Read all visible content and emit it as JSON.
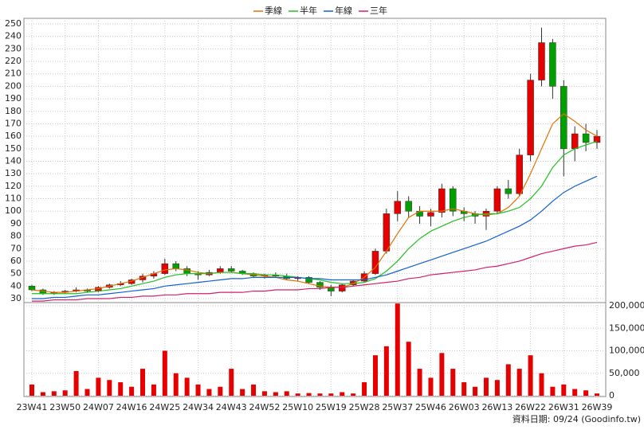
{
  "chart_data": {
    "type": "candlestick",
    "categories": [
      "23W41",
      null,
      null,
      "23W50",
      null,
      null,
      "24W07",
      null,
      null,
      "24W16",
      null,
      null,
      "24W25",
      null,
      null,
      "24W34",
      null,
      null,
      "24W43",
      null,
      null,
      "24W52",
      null,
      null,
      "25W10",
      null,
      null,
      "25W19",
      null,
      null,
      "25W28",
      null,
      null,
      "25W37",
      null,
      null,
      "25W46",
      null,
      null,
      "26W03",
      null,
      null,
      "26W13",
      null,
      null,
      "26W22",
      null,
      null,
      "26W31",
      null,
      null,
      "26W39"
    ],
    "open": [
      40,
      37,
      34,
      35,
      36,
      37,
      36,
      39,
      41,
      42,
      45,
      48,
      50,
      58,
      54,
      50,
      49,
      51,
      54,
      52,
      50,
      48,
      49,
      48,
      46,
      47,
      43,
      39,
      36,
      41,
      44,
      50,
      68,
      98,
      108,
      100,
      96,
      99,
      118,
      100,
      98,
      96,
      100,
      118,
      114,
      145,
      205,
      235,
      200,
      150,
      162,
      155
    ],
    "high": [
      41,
      38,
      36,
      37,
      39,
      38,
      40,
      42,
      44,
      46,
      50,
      52,
      62,
      60,
      56,
      52,
      53,
      56,
      56,
      53,
      51,
      50,
      51,
      50,
      48,
      48,
      44,
      41,
      42,
      45,
      52,
      70,
      102,
      116,
      112,
      104,
      102,
      122,
      120,
      103,
      100,
      102,
      120,
      125,
      150,
      210,
      247,
      238,
      205,
      168,
      170,
      165
    ],
    "low": [
      36,
      33,
      33,
      34,
      35,
      35,
      35,
      38,
      40,
      41,
      43,
      46,
      49,
      52,
      48,
      45,
      48,
      50,
      51,
      49,
      47,
      46,
      47,
      45,
      44,
      42,
      37,
      32,
      35,
      40,
      43,
      49,
      66,
      92,
      95,
      90,
      88,
      95,
      96,
      92,
      90,
      85,
      98,
      110,
      112,
      140,
      200,
      190,
      128,
      140,
      148,
      150
    ],
    "close": [
      37,
      34,
      35,
      36,
      37,
      36,
      39,
      41,
      42,
      45,
      48,
      50,
      58,
      54,
      50,
      49,
      51,
      54,
      52,
      50,
      48,
      49,
      48,
      46,
      47,
      43,
      39,
      36,
      41,
      44,
      50,
      68,
      98,
      108,
      100,
      96,
      99,
      118,
      100,
      98,
      96,
      100,
      118,
      114,
      145,
      205,
      235,
      200,
      150,
      162,
      155,
      160
    ],
    "up_color": "#e60000",
    "down_color": "#00a000",
    "series": [
      {
        "name": "季線",
        "color": "#e07000",
        "values": [
          37,
          36,
          35,
          35,
          36,
          37,
          38,
          40,
          42,
          44,
          47,
          50,
          53,
          54,
          53,
          51,
          50,
          51,
          51,
          50,
          49,
          48,
          47,
          45,
          44,
          42,
          40,
          39,
          39,
          42,
          47,
          55,
          68,
          82,
          95,
          100,
          100,
          100,
          102,
          100,
          98,
          97,
          98,
          103,
          112,
          130,
          150,
          170,
          178,
          172,
          165,
          160
        ]
      },
      {
        "name": "半年",
        "color": "#20c020",
        "values": [
          34,
          34,
          34,
          34,
          34,
          35,
          36,
          37,
          38,
          40,
          42,
          44,
          47,
          49,
          50,
          50,
          50,
          51,
          51,
          50,
          50,
          49,
          49,
          48,
          47,
          46,
          45,
          43,
          42,
          42,
          43,
          46,
          52,
          60,
          70,
          78,
          84,
          88,
          92,
          95,
          97,
          98,
          98,
          100,
          103,
          110,
          120,
          135,
          145,
          150,
          153,
          156
        ]
      },
      {
        "name": "年線",
        "color": "#1060d0",
        "values": [
          30,
          30,
          31,
          31,
          32,
          33,
          33,
          34,
          35,
          36,
          37,
          38,
          40,
          41,
          42,
          43,
          44,
          45,
          46,
          46,
          47,
          47,
          47,
          47,
          47,
          46,
          46,
          45,
          45,
          45,
          45,
          47,
          49,
          52,
          55,
          58,
          61,
          64,
          67,
          70,
          73,
          76,
          80,
          84,
          88,
          93,
          100,
          108,
          115,
          120,
          124,
          128
        ]
      },
      {
        "name": "三年",
        "color": "#d0206a",
        "values": [
          28,
          28,
          29,
          29,
          29,
          30,
          30,
          30,
          31,
          31,
          32,
          32,
          33,
          33,
          34,
          34,
          34,
          35,
          35,
          35,
          36,
          36,
          37,
          37,
          37,
          38,
          38,
          39,
          39,
          40,
          41,
          42,
          43,
          44,
          46,
          47,
          49,
          50,
          51,
          52,
          53,
          55,
          56,
          58,
          60,
          63,
          66,
          68,
          70,
          72,
          73,
          75
        ]
      }
    ],
    "ylim": [
      30,
      250
    ],
    "yticks": [
      30,
      40,
      50,
      60,
      70,
      80,
      90,
      100,
      110,
      120,
      130,
      140,
      150,
      160,
      170,
      180,
      190,
      200,
      210,
      220,
      230,
      240,
      250
    ],
    "grid": true,
    "volume": {
      "color": "#e60000",
      "ylim": [
        0,
        200000
      ],
      "yticks": [
        {
          "value": 0,
          "label": "0"
        },
        {
          "value": 50000,
          "label": "50,000"
        },
        {
          "value": 100000,
          "label": "100,000"
        },
        {
          "value": 150000,
          "label": "150,000"
        },
        {
          "value": 200000,
          "label": "200,000"
        }
      ],
      "values": [
        25000,
        8000,
        10000,
        12000,
        55000,
        15000,
        40000,
        35000,
        30000,
        20000,
        60000,
        25000,
        100000,
        50000,
        40000,
        25000,
        15000,
        20000,
        60000,
        15000,
        25000,
        10000,
        8000,
        10000,
        5000,
        6000,
        5000,
        5000,
        8000,
        5000,
        30000,
        90000,
        110000,
        205000,
        120000,
        60000,
        40000,
        95000,
        60000,
        30000,
        20000,
        40000,
        35000,
        70000,
        60000,
        90000,
        50000,
        20000,
        25000,
        15000,
        12000,
        5000
      ]
    },
    "footer": "資料日期: 09/24  (Goodinfo.tw)"
  }
}
